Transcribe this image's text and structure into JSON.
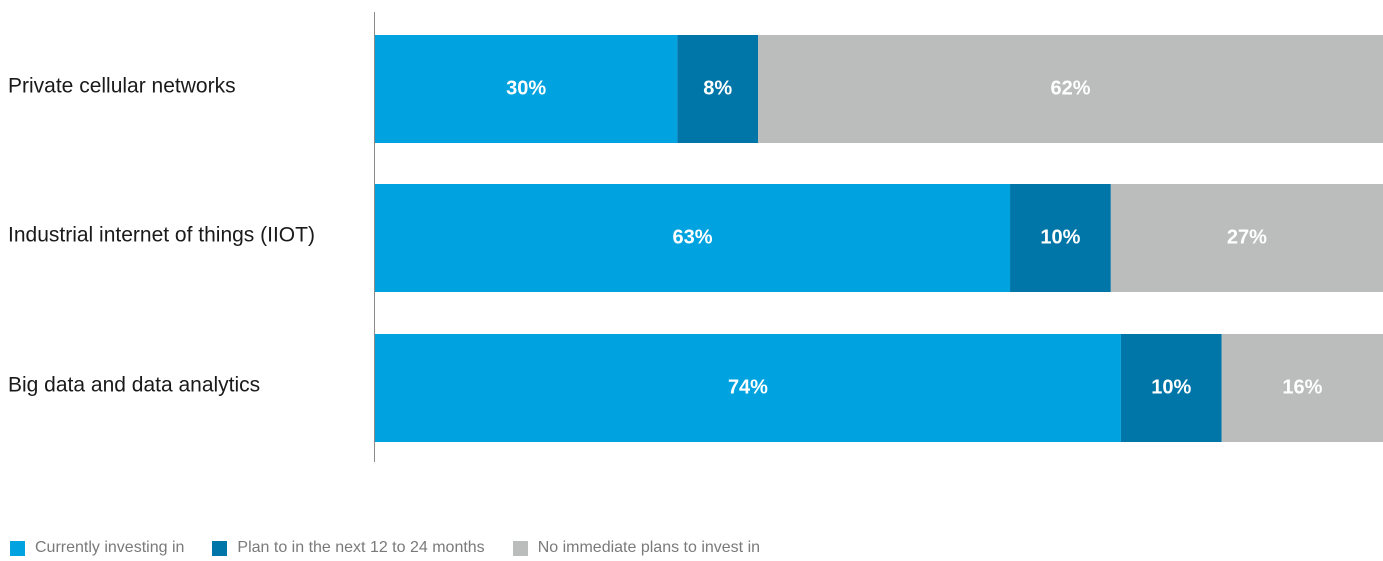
{
  "chart_data": {
    "type": "bar",
    "orientation": "horizontal",
    "stacked": true,
    "categories": [
      "Private cellular networks",
      "Industrial internet of things (IIOT)",
      "Big data and data analytics"
    ],
    "series": [
      {
        "name": "Currently investing in",
        "color": "#00a3e0",
        "values": [
          30,
          63,
          74
        ],
        "labels": [
          "30%",
          "63%",
          "74%"
        ]
      },
      {
        "name": "Plan to in the next 12 to 24 months",
        "color": "#0076a8",
        "values": [
          8,
          10,
          10
        ],
        "labels": [
          "8%",
          "10%",
          "10%"
        ]
      },
      {
        "name": "No immediate plans to invest in",
        "color": "#bbbcbc",
        "values": [
          62,
          27,
          16
        ],
        "labels": [
          "62%",
          "27%",
          "16%"
        ]
      }
    ],
    "xlim": [
      0,
      100
    ],
    "grid": false,
    "legend_position": "bottom-left"
  }
}
